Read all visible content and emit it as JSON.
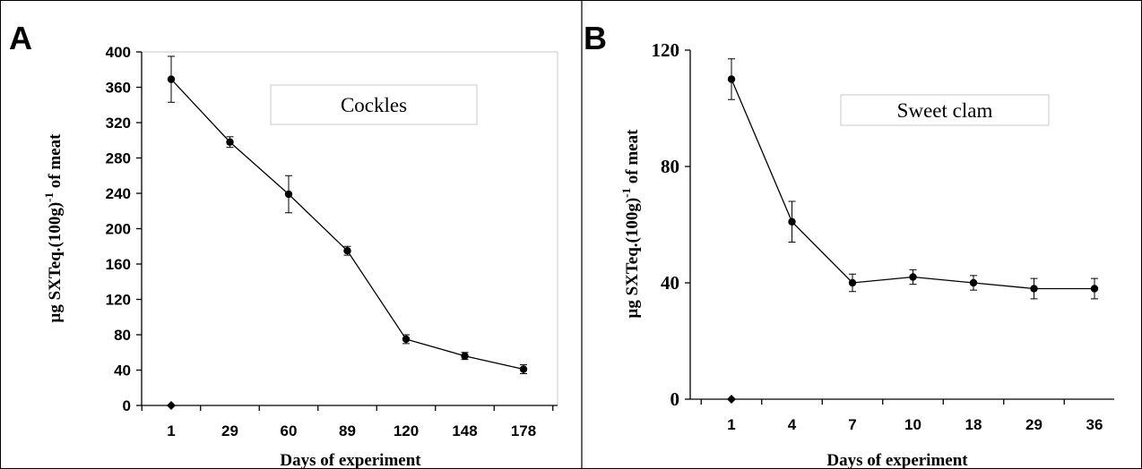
{
  "chart_data": [
    {
      "type": "line",
      "panel_label": "A",
      "legend": "Cockles",
      "xlabel": "Days of experiment",
      "ylabel": "μg SXTeq.(100g)",
      "ylabel_sup": "-1",
      "ylabel_tail": " of meat",
      "categories": [
        "1",
        "29",
        "60",
        "89",
        "120",
        "148",
        "178"
      ],
      "series": [
        {
          "values": [
            369,
            298,
            239,
            175,
            75,
            56,
            41
          ],
          "errors": [
            26,
            6,
            21,
            5,
            5,
            4,
            5
          ]
        }
      ],
      "extra_points": [
        {
          "category": "1",
          "value": 0,
          "marker": "diamond"
        }
      ],
      "ylim": [
        0,
        400
      ],
      "yticks": [
        0,
        40,
        80,
        120,
        160,
        200,
        240,
        280,
        320,
        360,
        400
      ],
      "grid": false
    },
    {
      "type": "line",
      "panel_label": "B",
      "legend": "Sweet clam",
      "xlabel": "Days of experiment",
      "ylabel": "μg SXTeq.(100g)",
      "ylabel_sup": "-1",
      "ylabel_tail": " of meat",
      "categories": [
        "1",
        "4",
        "7",
        "10",
        "18",
        "29",
        "36"
      ],
      "series": [
        {
          "values": [
            110,
            61,
            40,
            42,
            40,
            38,
            38
          ],
          "errors": [
            7,
            7,
            3,
            2.5,
            2.5,
            3.5,
            3.5
          ]
        }
      ],
      "extra_points": [
        {
          "category": "1",
          "value": 0,
          "marker": "diamond"
        }
      ],
      "ylim": [
        0,
        120
      ],
      "yticks": [
        0,
        40,
        80,
        120
      ],
      "grid": false
    }
  ]
}
